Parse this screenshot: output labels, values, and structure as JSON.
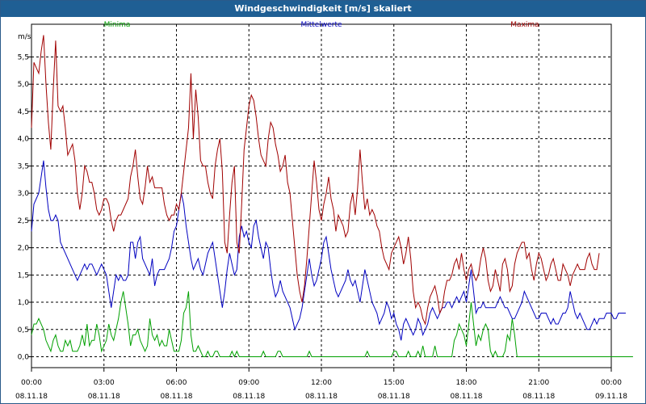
{
  "window_title": "Windgeschwindigkeit [m/s] skaliert",
  "chart_data": {
    "type": "line",
    "title": "Windgeschwindigkeit [m/s] skaliert",
    "ylabel": "m/s",
    "xlabel": "",
    "ylim": [
      -0.2,
      6.1
    ],
    "xlim": [
      0,
      24
    ],
    "grid": true,
    "yticks": [
      0.0,
      0.5,
      1.0,
      1.5,
      2.0,
      2.5,
      3.0,
      3.5,
      4.0,
      4.5,
      5.0,
      5.5
    ],
    "ytick_labels": [
      "0,0",
      "0,5",
      "1,0",
      "1,5",
      "2,0",
      "2,5",
      "3,0",
      "3,5",
      "4,0",
      "4,5",
      "5,0",
      "5,5"
    ],
    "xticks": [
      0,
      3,
      6,
      9,
      12,
      15,
      18,
      21,
      24
    ],
    "xtick_labels": [
      [
        "00:00",
        "08.11.18"
      ],
      [
        "03:00",
        "08.11.18"
      ],
      [
        "06:00",
        "08.11.18"
      ],
      [
        "09:00",
        "08.11.18"
      ],
      [
        "12:00",
        "08.11.18"
      ],
      [
        "15:00",
        "08.11.18"
      ],
      [
        "18:00",
        "08.11.18"
      ],
      [
        "21:00",
        "08.11.18"
      ],
      [
        "00:00",
        "09.11.18"
      ]
    ],
    "legend_position": "top",
    "step_hours": 0.1,
    "series": [
      {
        "name": "Minima",
        "color": "#00a000",
        "values": [
          0.4,
          0.6,
          0.6,
          0.7,
          0.6,
          0.5,
          0.3,
          0.2,
          0.1,
          0.3,
          0.4,
          0.2,
          0.1,
          0.1,
          0.3,
          0.2,
          0.3,
          0.1,
          0.1,
          0.1,
          0.2,
          0.4,
          0.2,
          0.6,
          0.2,
          0.3,
          0.3,
          0.6,
          0.4,
          0.1,
          0.2,
          0.3,
          0.6,
          0.4,
          0.3,
          0.5,
          0.7,
          1.0,
          1.2,
          0.9,
          0.6,
          0.2,
          0.4,
          0.4,
          0.5,
          0.3,
          0.2,
          0.1,
          0.2,
          0.7,
          0.4,
          0.3,
          0.4,
          0.2,
          0.3,
          0.2,
          0.2,
          0.5,
          0.3,
          0.1,
          0.1,
          0.1,
          0.3,
          0.8,
          0.9,
          1.2,
          0.4,
          0.1,
          0.1,
          0.2,
          0.1,
          0.0,
          0.0,
          0.1,
          0.0,
          0.0,
          0.1,
          0.1,
          0.0,
          0.0,
          0.0,
          0.0,
          0.0,
          0.1,
          0.0,
          0.1,
          0.0,
          0.0,
          0.0,
          0.0,
          0.0,
          0.0,
          0.0,
          0.0,
          0.0,
          0.0,
          0.1,
          0.0,
          0.0,
          0.0,
          0.0,
          0.0,
          0.1,
          0.1,
          0.0,
          0.0,
          0.0,
          0.0,
          0.0,
          0.0,
          0.0,
          0.0,
          0.0,
          0.0,
          0.0,
          0.1,
          0.0,
          0.0,
          0.0,
          0.0,
          0.0,
          0.0,
          0.0,
          0.0,
          0.0,
          0.0,
          0.0,
          0.0,
          0.0,
          0.0,
          0.0,
          0.0,
          0.0,
          0.0,
          0.0,
          0.0,
          0.0,
          0.0,
          0.0,
          0.1,
          0.0,
          0.0,
          0.0,
          0.0,
          0.0,
          0.0,
          0.0,
          0.0,
          0.0,
          0.0,
          0.1,
          0.1,
          0.0,
          0.0,
          0.0,
          0.0,
          0.1,
          0.0,
          0.0,
          0.0,
          0.1,
          0.0,
          0.2,
          0.0,
          0.0,
          0.0,
          0.0,
          0.2,
          0.0,
          0.0,
          0.0,
          0.0,
          0.0,
          0.0,
          0.0,
          0.3,
          0.4,
          0.6,
          0.5,
          0.4,
          0.2,
          0.6,
          1.0,
          0.6,
          0.2,
          0.4,
          0.3,
          0.5,
          0.6,
          0.5,
          0.1,
          0.0,
          0.1,
          0.0,
          0.0,
          0.0,
          0.1,
          0.4,
          0.3,
          0.7,
          0.4,
          0.0,
          0.0,
          0.0,
          0.0,
          0.0,
          0.0,
          0.0,
          0.0,
          0.0,
          0.0,
          0.0,
          0.0,
          0.0,
          0.0,
          0.0,
          0.0,
          0.0,
          0.0,
          0.0,
          0.0,
          0.0,
          0.0,
          0.0,
          0.0,
          0.0,
          0.0,
          0.0,
          0.0,
          0.0,
          0.0,
          0.0,
          0.0,
          0.0,
          0.0,
          0.0,
          0.0,
          0.0,
          0.0,
          0.0,
          0.0,
          0.0,
          0.0,
          0.0,
          0.0,
          0.0,
          0.0,
          0.0,
          0.0,
          0.0
        ]
      },
      {
        "name": "Mittelwerte",
        "color": "#0000c0",
        "values": [
          2.3,
          2.8,
          2.9,
          3.0,
          3.3,
          3.6,
          3.1,
          2.7,
          2.5,
          2.5,
          2.6,
          2.5,
          2.1,
          2.0,
          1.9,
          1.8,
          1.7,
          1.6,
          1.5,
          1.4,
          1.5,
          1.6,
          1.7,
          1.6,
          1.7,
          1.7,
          1.6,
          1.5,
          1.6,
          1.7,
          1.6,
          1.5,
          1.2,
          0.9,
          1.2,
          1.5,
          1.4,
          1.5,
          1.4,
          1.4,
          1.5,
          2.1,
          2.1,
          1.8,
          2.1,
          2.2,
          1.8,
          1.7,
          1.6,
          1.5,
          1.8,
          1.3,
          1.5,
          1.6,
          1.6,
          1.6,
          1.7,
          1.8,
          2.0,
          2.3,
          2.4,
          2.7,
          3.0,
          2.8,
          2.4,
          2.1,
          1.8,
          1.6,
          1.7,
          1.8,
          1.6,
          1.5,
          1.7,
          1.9,
          2.0,
          2.1,
          1.8,
          1.5,
          1.2,
          0.9,
          1.2,
          1.6,
          1.9,
          1.7,
          1.5,
          1.6,
          2.2,
          2.4,
          2.2,
          2.3,
          2.1,
          2.0,
          2.4,
          2.5,
          2.2,
          2.0,
          1.8,
          2.1,
          2.0,
          1.6,
          1.3,
          1.1,
          1.2,
          1.4,
          1.2,
          1.1,
          1.0,
          0.9,
          0.7,
          0.5,
          0.6,
          0.7,
          0.9,
          1.2,
          1.5,
          1.8,
          1.5,
          1.3,
          1.4,
          1.6,
          1.8,
          2.1,
          2.2,
          1.9,
          1.6,
          1.4,
          1.2,
          1.1,
          1.2,
          1.3,
          1.4,
          1.6,
          1.4,
          1.3,
          1.4,
          1.2,
          1.0,
          1.3,
          1.6,
          1.4,
          1.2,
          1.0,
          0.9,
          0.8,
          0.6,
          0.7,
          0.8,
          1.0,
          0.9,
          0.7,
          0.8,
          0.6,
          0.5,
          0.3,
          0.6,
          0.7,
          0.6,
          0.5,
          0.4,
          0.5,
          0.7,
          0.6,
          0.4,
          0.5,
          0.6,
          0.8,
          0.9,
          0.8,
          0.7,
          0.8,
          0.9,
          0.9,
          1.0,
          1.0,
          0.9,
          1.0,
          1.1,
          1.0,
          1.1,
          1.2,
          1.0,
          1.3,
          1.6,
          1.2,
          0.8,
          0.9,
          0.9,
          1.0,
          0.9,
          0.9,
          0.9,
          0.9,
          0.9,
          1.0,
          1.1,
          1.0,
          0.9,
          0.9,
          0.8,
          0.7,
          0.7,
          0.8,
          0.9,
          1.0,
          1.2,
          1.1,
          1.0,
          0.9,
          0.8,
          0.7,
          0.7,
          0.8,
          0.8,
          0.8,
          0.7,
          0.6,
          0.7,
          0.6,
          0.6,
          0.7,
          0.8,
          0.8,
          0.9,
          1.2,
          1.0,
          0.8,
          0.7,
          0.8,
          0.7,
          0.6,
          0.5,
          0.5,
          0.6,
          0.7,
          0.6,
          0.7,
          0.7,
          0.7,
          0.8,
          0.8,
          0.8,
          0.7,
          0.7,
          0.8,
          0.8,
          0.8,
          0.8
        ]
      },
      {
        "name": "Maxima",
        "color": "#a00000",
        "values": [
          4.2,
          5.4,
          5.3,
          5.2,
          5.6,
          5.9,
          5.0,
          4.3,
          3.8,
          4.9,
          5.8,
          4.6,
          4.5,
          4.6,
          4.2,
          3.7,
          3.8,
          3.9,
          3.6,
          3.0,
          2.7,
          3.0,
          3.5,
          3.4,
          3.2,
          3.2,
          3.0,
          2.7,
          2.6,
          2.7,
          2.9,
          2.9,
          2.8,
          2.5,
          2.3,
          2.5,
          2.6,
          2.6,
          2.7,
          2.8,
          2.9,
          3.3,
          3.5,
          3.8,
          3.3,
          2.9,
          2.8,
          3.1,
          3.5,
          3.2,
          3.3,
          3.1,
          3.1,
          3.1,
          3.1,
          2.8,
          2.6,
          2.5,
          2.6,
          2.6,
          2.8,
          2.7,
          3.0,
          3.4,
          3.8,
          4.2,
          5.2,
          4.0,
          4.9,
          4.4,
          3.6,
          3.5,
          3.5,
          3.2,
          3.0,
          2.9,
          3.5,
          3.8,
          4.0,
          3.4,
          2.1,
          1.9,
          2.6,
          3.2,
          3.5,
          2.1,
          1.9,
          2.8,
          3.8,
          4.2,
          4.6,
          4.8,
          4.7,
          4.4,
          4.0,
          3.7,
          3.6,
          3.5,
          4.0,
          4.3,
          4.2,
          3.9,
          3.7,
          3.4,
          3.5,
          3.7,
          3.2,
          3.0,
          2.5,
          2.0,
          1.5,
          1.2,
          1.0,
          1.3,
          1.8,
          2.4,
          3.0,
          3.6,
          3.2,
          2.7,
          2.5,
          2.8,
          3.0,
          3.3,
          2.9,
          2.7,
          2.3,
          2.6,
          2.5,
          2.4,
          2.2,
          2.3,
          2.8,
          3.0,
          2.6,
          3.1,
          3.8,
          3.2,
          2.7,
          2.9,
          2.6,
          2.7,
          2.6,
          2.4,
          2.3,
          2.0,
          1.8,
          1.7,
          1.6,
          1.9,
          2.0,
          2.1,
          2.2,
          2.0,
          1.7,
          1.9,
          2.2,
          1.8,
          1.2,
          0.9,
          1.0,
          0.9,
          0.7,
          0.6,
          0.9,
          1.1,
          1.2,
          1.3,
          1.1,
          0.8,
          0.9,
          1.2,
          1.4,
          1.4,
          1.5,
          1.7,
          1.8,
          1.6,
          1.9,
          1.6,
          1.4,
          1.6,
          1.7,
          1.5,
          1.4,
          1.5,
          1.8,
          2.0,
          1.8,
          1.4,
          1.2,
          1.3,
          1.6,
          1.4,
          1.2,
          1.7,
          1.8,
          1.6,
          1.2,
          1.3,
          1.7,
          1.9,
          2.0,
          2.1,
          2.1,
          1.8,
          1.9,
          1.6,
          1.4,
          1.7,
          1.9,
          1.8,
          1.6,
          1.4,
          1.5,
          1.7,
          1.8,
          1.6,
          1.4,
          1.4,
          1.7,
          1.6,
          1.5,
          1.3,
          1.5,
          1.6,
          1.7,
          1.6,
          1.6,
          1.6,
          1.8,
          1.9,
          1.7,
          1.6,
          1.6,
          1.9
        ]
      }
    ]
  }
}
